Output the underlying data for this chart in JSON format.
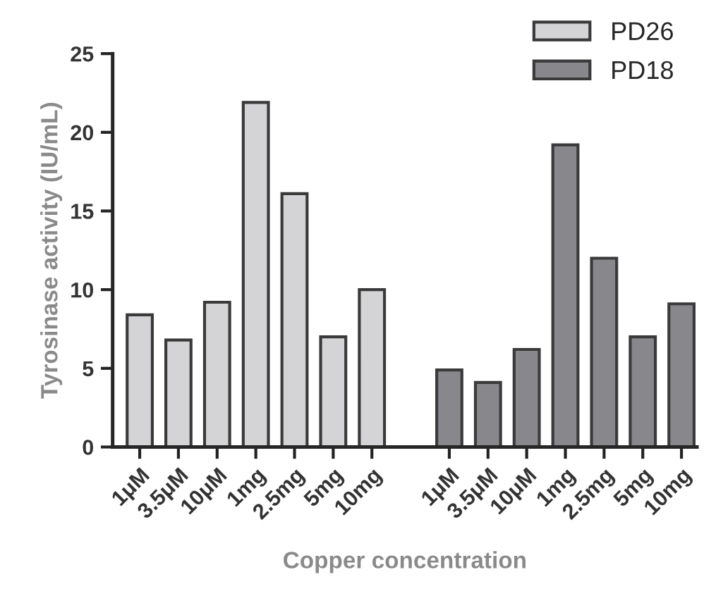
{
  "chart_data": {
    "type": "bar",
    "xlabel": "Copper concentration",
    "ylabel": "Tyrosinase activity (IU/mL)",
    "categories": [
      "1μM",
      "3.5μM",
      "10μM",
      "1mg",
      "2.5mg",
      "5mg",
      "10mg",
      null,
      "1μM",
      "3.5μM",
      "10μM",
      "1mg",
      "2.5mg",
      "5mg",
      "10mg"
    ],
    "series": [
      {
        "name": "PD26",
        "color": "#d4d4d6",
        "values": [
          8.4,
          6.8,
          9.2,
          21.9,
          16.1,
          7.0,
          10.0,
          null,
          null,
          null,
          null,
          null,
          null,
          null,
          null
        ]
      },
      {
        "name": "PD18",
        "color": "#88888c",
        "values": [
          null,
          null,
          null,
          null,
          null,
          null,
          null,
          null,
          4.9,
          4.1,
          6.2,
          19.2,
          12.0,
          7.0,
          9.1
        ]
      }
    ],
    "ylim": [
      0,
      25
    ],
    "yticks": [
      0,
      5,
      10,
      15,
      20,
      25
    ],
    "grid": false,
    "legend": "top right"
  }
}
